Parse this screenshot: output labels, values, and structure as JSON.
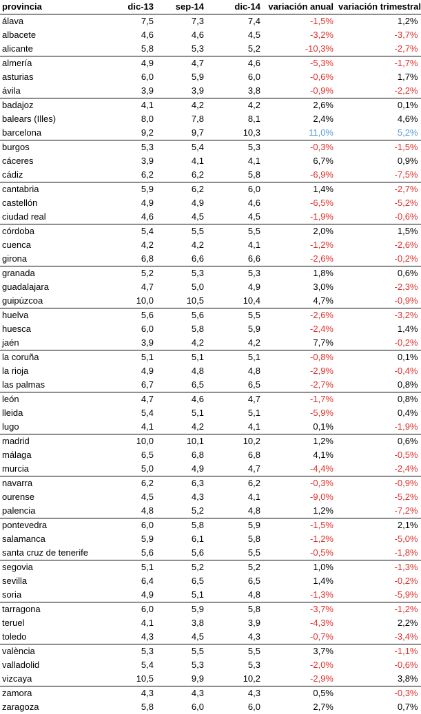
{
  "colors": {
    "negative": "#e0302c",
    "highlight": "#5b9bd5",
    "text": "#000000"
  },
  "headers": [
    "provincia",
    "dic-13",
    "sep-14",
    "dic-14",
    "variación anual",
    "variación trimestral"
  ],
  "rows": [
    {
      "provincia": "álava",
      "dic13": "7,5",
      "sep14": "7,3",
      "dic14": "7,4",
      "anual": "-1,5%",
      "trim": "1,2%"
    },
    {
      "provincia": "albacete",
      "dic13": "4,6",
      "sep14": "4,6",
      "dic14": "4,5",
      "anual": "-3,2%",
      "trim": "-3,7%"
    },
    {
      "provincia": "alicante",
      "dic13": "5,8",
      "sep14": "5,3",
      "dic14": "5,2",
      "anual": "-10,3%",
      "trim": "-2,7%"
    },
    {
      "provincia": "almería",
      "dic13": "4,9",
      "sep14": "4,7",
      "dic14": "4,6",
      "anual": "-5,3%",
      "trim": "-1,7%"
    },
    {
      "provincia": "asturias",
      "dic13": "6,0",
      "sep14": "5,9",
      "dic14": "6,0",
      "anual": "-0,6%",
      "trim": "1,7%"
    },
    {
      "provincia": "ávila",
      "dic13": "3,9",
      "sep14": "3,9",
      "dic14": "3,8",
      "anual": "-0,9%",
      "trim": "-2,2%"
    },
    {
      "provincia": "badajoz",
      "dic13": "4,1",
      "sep14": "4,2",
      "dic14": "4,2",
      "anual": "2,6%",
      "trim": "0,1%"
    },
    {
      "provincia": "balears (Illes)",
      "dic13": "8,0",
      "sep14": "7,8",
      "dic14": "8,1",
      "anual": "2,4%",
      "trim": "4,6%"
    },
    {
      "provincia": "barcelona",
      "dic13": "9,2",
      "sep14": "9,7",
      "dic14": "10,3",
      "anual": "11,0%",
      "trim": "5,2%",
      "highlight": true
    },
    {
      "provincia": "burgos",
      "dic13": "5,3",
      "sep14": "5,4",
      "dic14": "5,3",
      "anual": "-0,3%",
      "trim": "-1,5%"
    },
    {
      "provincia": "cáceres",
      "dic13": "3,9",
      "sep14": "4,1",
      "dic14": "4,1",
      "anual": "6,7%",
      "trim": "0,9%"
    },
    {
      "provincia": "cádiz",
      "dic13": "6,2",
      "sep14": "6,2",
      "dic14": "5,8",
      "anual": "-6,9%",
      "trim": "-7,5%"
    },
    {
      "provincia": "cantabria",
      "dic13": "5,9",
      "sep14": "6,2",
      "dic14": "6,0",
      "anual": "1,4%",
      "trim": "-2,7%"
    },
    {
      "provincia": "castellón",
      "dic13": "4,9",
      "sep14": "4,9",
      "dic14": "4,6",
      "anual": "-6,5%",
      "trim": "-5,2%"
    },
    {
      "provincia": "ciudad real",
      "dic13": "4,6",
      "sep14": "4,5",
      "dic14": "4,5",
      "anual": "-1,9%",
      "trim": "-0,6%"
    },
    {
      "provincia": "córdoba",
      "dic13": "5,4",
      "sep14": "5,5",
      "dic14": "5,5",
      "anual": "2,0%",
      "trim": "1,5%"
    },
    {
      "provincia": "cuenca",
      "dic13": "4,2",
      "sep14": "4,2",
      "dic14": "4,1",
      "anual": "-1,2%",
      "trim": "-2,6%"
    },
    {
      "provincia": "girona",
      "dic13": "6,8",
      "sep14": "6,6",
      "dic14": "6,6",
      "anual": "-2,6%",
      "trim": "-0,2%"
    },
    {
      "provincia": "granada",
      "dic13": "5,2",
      "sep14": "5,3",
      "dic14": "5,3",
      "anual": "1,8%",
      "trim": "0,6%"
    },
    {
      "provincia": "guadalajara",
      "dic13": "4,7",
      "sep14": "5,0",
      "dic14": "4,9",
      "anual": "3,0%",
      "trim": "-2,3%"
    },
    {
      "provincia": "guipúzcoa",
      "dic13": "10,0",
      "sep14": "10,5",
      "dic14": "10,4",
      "anual": "4,7%",
      "trim": "-0,9%"
    },
    {
      "provincia": "huelva",
      "dic13": "5,6",
      "sep14": "5,6",
      "dic14": "5,5",
      "anual": "-2,6%",
      "trim": "-3,2%"
    },
    {
      "provincia": "huesca",
      "dic13": "6,0",
      "sep14": "5,8",
      "dic14": "5,9",
      "anual": "-2,4%",
      "trim": "1,4%"
    },
    {
      "provincia": "jaén",
      "dic13": "3,9",
      "sep14": "4,2",
      "dic14": "4,2",
      "anual": "7,7%",
      "trim": "-0,2%"
    },
    {
      "provincia": "la coruña",
      "dic13": "5,1",
      "sep14": "5,1",
      "dic14": "5,1",
      "anual": "-0,8%",
      "trim": "0,1%"
    },
    {
      "provincia": "la rioja",
      "dic13": "4,9",
      "sep14": "4,8",
      "dic14": "4,8",
      "anual": "-2,9%",
      "trim": "-0,4%"
    },
    {
      "provincia": "las palmas",
      "dic13": "6,7",
      "sep14": "6,5",
      "dic14": "6,5",
      "anual": "-2,7%",
      "trim": "0,8%"
    },
    {
      "provincia": "león",
      "dic13": "4,7",
      "sep14": "4,6",
      "dic14": "4,7",
      "anual": "-1,7%",
      "trim": "0,8%"
    },
    {
      "provincia": "lleida",
      "dic13": "5,4",
      "sep14": "5,1",
      "dic14": "5,1",
      "anual": "-5,9%",
      "trim": "0,4%"
    },
    {
      "provincia": "lugo",
      "dic13": "4,1",
      "sep14": "4,2",
      "dic14": "4,1",
      "anual": "0,1%",
      "trim": "-1,9%"
    },
    {
      "provincia": "madrid",
      "dic13": "10,0",
      "sep14": "10,1",
      "dic14": "10,2",
      "anual": "1,2%",
      "trim": "0,6%"
    },
    {
      "provincia": "málaga",
      "dic13": "6,5",
      "sep14": "6,8",
      "dic14": "6,8",
      "anual": "4,1%",
      "trim": "-0,5%"
    },
    {
      "provincia": "murcia",
      "dic13": "5,0",
      "sep14": "4,9",
      "dic14": "4,7",
      "anual": "-4,4%",
      "trim": "-2,4%"
    },
    {
      "provincia": "navarra",
      "dic13": "6,2",
      "sep14": "6,3",
      "dic14": "6,2",
      "anual": "-0,3%",
      "trim": "-0,9%"
    },
    {
      "provincia": "ourense",
      "dic13": "4,5",
      "sep14": "4,3",
      "dic14": "4,1",
      "anual": "-9,0%",
      "trim": "-5,2%"
    },
    {
      "provincia": "palencia",
      "dic13": "4,8",
      "sep14": "5,2",
      "dic14": "4,8",
      "anual": "1,2%",
      "trim": "-7,2%"
    },
    {
      "provincia": "pontevedra",
      "dic13": "6,0",
      "sep14": "5,8",
      "dic14": "5,9",
      "anual": "-1,5%",
      "trim": "2,1%"
    },
    {
      "provincia": "salamanca",
      "dic13": "5,9",
      "sep14": "6,1",
      "dic14": "5,8",
      "anual": "-1,2%",
      "trim": "-5,0%"
    },
    {
      "provincia": "santa cruz de tenerife",
      "dic13": "5,6",
      "sep14": "5,6",
      "dic14": "5,5",
      "anual": "-0,5%",
      "trim": "-1,8%"
    },
    {
      "provincia": "segovia",
      "dic13": "5,1",
      "sep14": "5,2",
      "dic14": "5,2",
      "anual": "1,0%",
      "trim": "-1,3%"
    },
    {
      "provincia": "sevilla",
      "dic13": "6,4",
      "sep14": "6,5",
      "dic14": "6,5",
      "anual": "1,4%",
      "trim": "-0,2%"
    },
    {
      "provincia": "soria",
      "dic13": "4,9",
      "sep14": "5,1",
      "dic14": "4,8",
      "anual": "-1,3%",
      "trim": "-5,9%"
    },
    {
      "provincia": "tarragona",
      "dic13": "6,0",
      "sep14": "5,9",
      "dic14": "5,8",
      "anual": "-3,7%",
      "trim": "-1,2%"
    },
    {
      "provincia": "teruel",
      "dic13": "4,1",
      "sep14": "3,8",
      "dic14": "3,9",
      "anual": "-4,3%",
      "trim": "2,2%"
    },
    {
      "provincia": "toledo",
      "dic13": "4,3",
      "sep14": "4,5",
      "dic14": "4,3",
      "anual": "-0,7%",
      "trim": "-3,4%"
    },
    {
      "provincia": "valència",
      "dic13": "5,3",
      "sep14": "5,5",
      "dic14": "5,5",
      "anual": "3,7%",
      "trim": "-1,1%"
    },
    {
      "provincia": "valladolid",
      "dic13": "5,4",
      "sep14": "5,3",
      "dic14": "5,3",
      "anual": "-2,0%",
      "trim": "-0,6%"
    },
    {
      "provincia": "vizcaya",
      "dic13": "10,5",
      "sep14": "9,9",
      "dic14": "10,2",
      "anual": "-2,9%",
      "trim": "3,8%"
    },
    {
      "provincia": "zamora",
      "dic13": "4,3",
      "sep14": "4,3",
      "dic14": "4,3",
      "anual": "0,5%",
      "trim": "-0,3%"
    },
    {
      "provincia": "zaragoza",
      "dic13": "5,8",
      "sep14": "6,0",
      "dic14": "6,0",
      "anual": "2,7%",
      "trim": "0,7%"
    }
  ]
}
